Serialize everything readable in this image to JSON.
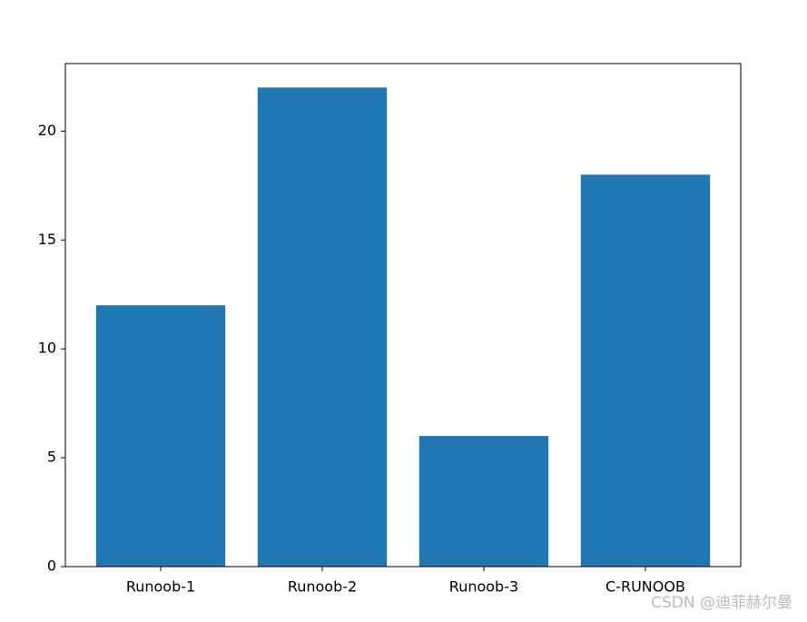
{
  "chart_data": {
    "type": "bar",
    "categories": [
      "Runoob-1",
      "Runoob-2",
      "Runoob-3",
      "C-RUNOOB"
    ],
    "values": [
      12,
      22,
      6,
      18
    ],
    "color": "#1f77b4",
    "ylim": [
      0,
      23.1
    ],
    "yticks": [
      0,
      5,
      10,
      15,
      20
    ],
    "grid": false
  },
  "watermark": "CSDN @迪菲赫尔曼"
}
